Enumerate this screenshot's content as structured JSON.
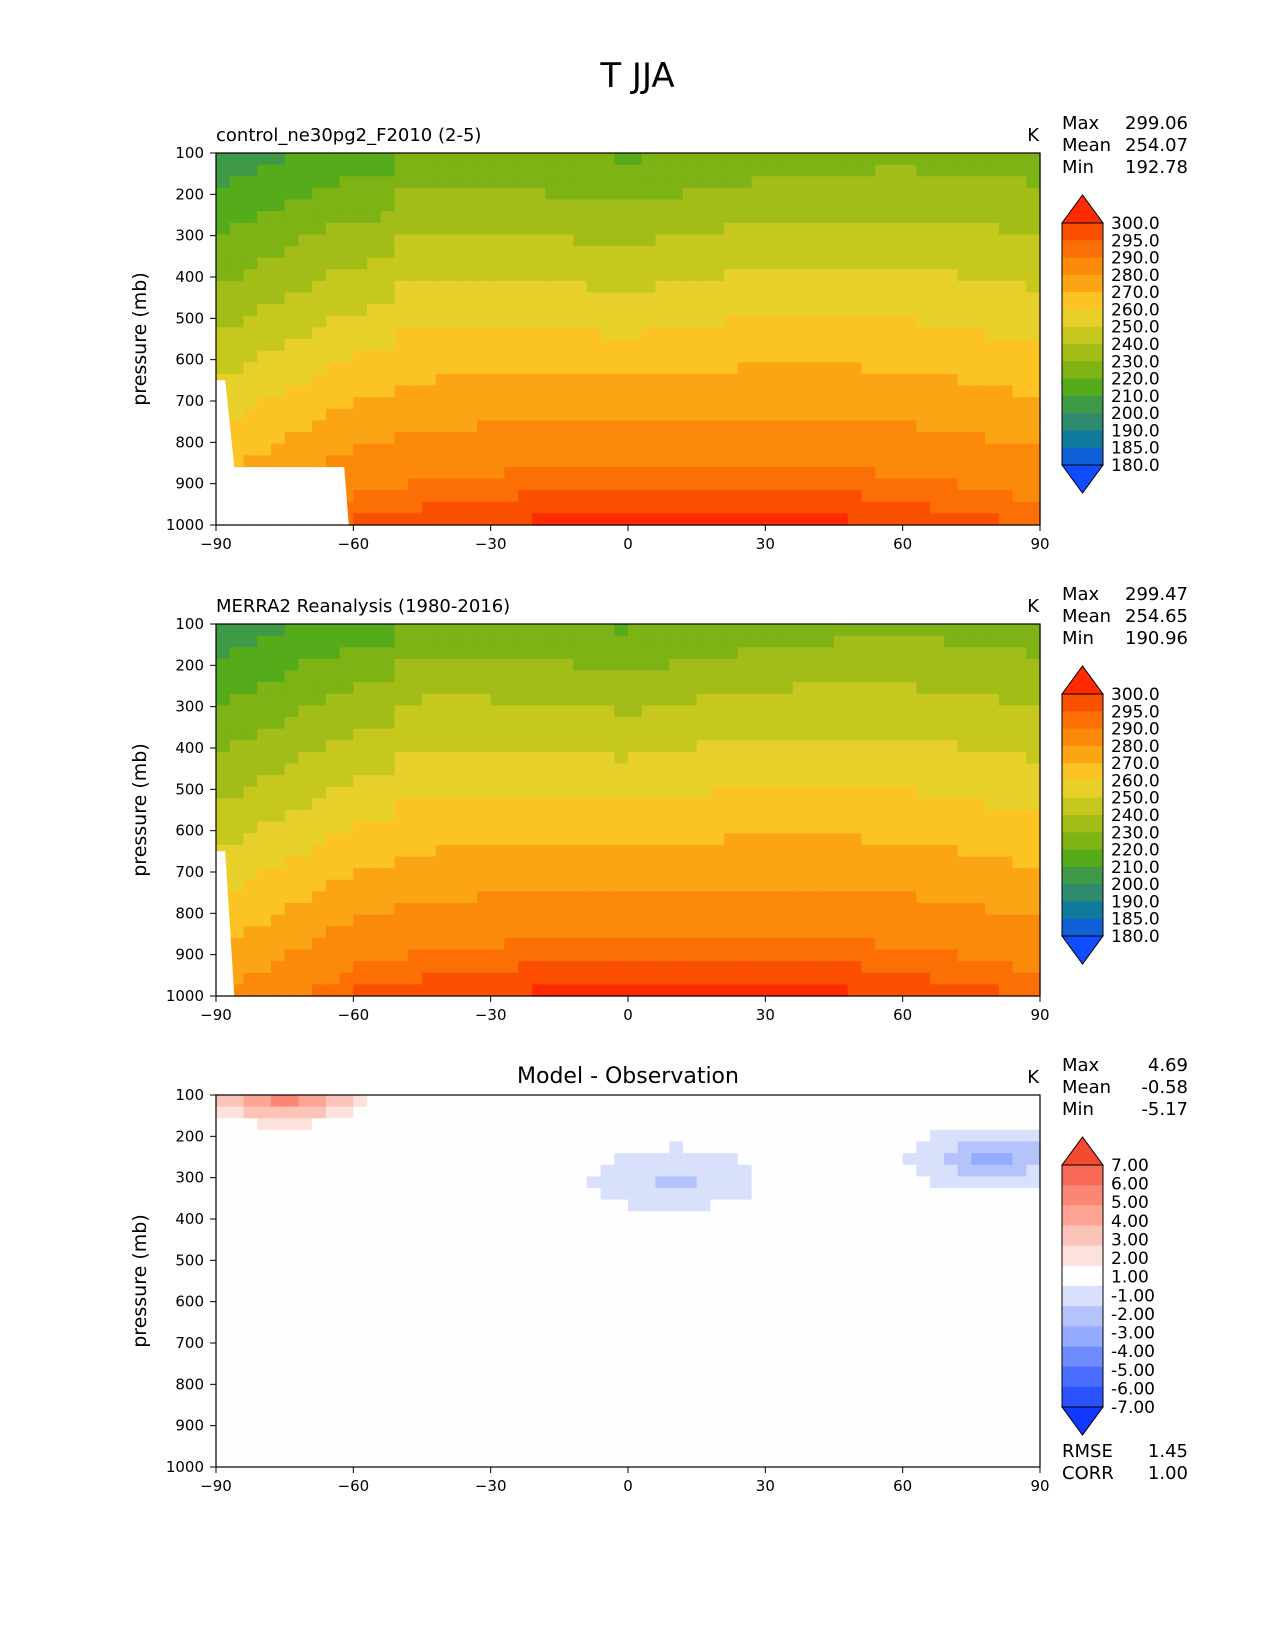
{
  "title": "T JJA",
  "colors": {
    "abs": [
      "#0f4cff",
      "#1060d8",
      "#0f7a99",
      "#2f8a6e",
      "#3f9a48",
      "#55ab1a",
      "#7db315",
      "#a2bc18",
      "#c6c81e",
      "#e8d02a",
      "#fbc422",
      "#fca514",
      "#fc8a0a",
      "#fb6f04",
      "#fb4f00",
      "#ff2a00"
    ],
    "diff": [
      "#1038ff",
      "#2a52ff",
      "#4a6dff",
      "#6e8cff",
      "#95abff",
      "#b4c3fc",
      "#d8e0fb",
      "#fefefe",
      "#fde2dc",
      "#fcc3b8",
      "#fca595",
      "#fb8673",
      "#f86a56",
      "#f44a30"
    ]
  },
  "chart_data": [
    {
      "type": "contour",
      "name": "model",
      "title_left": "control_ne30pg2_F2010 (2-5)",
      "units": "K",
      "ylabel": "pressure (mb)",
      "xticks": [
        "−90",
        "−60",
        "−30",
        "0",
        "30",
        "60",
        "90"
      ],
      "yticks": [
        "100",
        "200",
        "300",
        "400",
        "500",
        "600",
        "700",
        "800",
        "900",
        "1000"
      ],
      "xlim": [
        -90,
        90
      ],
      "ylim": [
        1000,
        100
      ],
      "stats": [
        {
          "label": "Max",
          "value": "299.06"
        },
        {
          "label": "Mean",
          "value": "254.07"
        },
        {
          "label": "Min",
          "value": "192.78"
        }
      ],
      "colorbar_levels": [
        "300.0",
        "295.0",
        "290.0",
        "280.0",
        "270.0",
        "260.0",
        "250.0",
        "240.0",
        "230.0",
        "220.0",
        "210.0",
        "200.0",
        "190.0",
        "185.0",
        "180.0"
      ]
    },
    {
      "type": "contour",
      "name": "obs",
      "title_left": "MERRA2 Reanalysis (1980-2016)",
      "units": "K",
      "ylabel": "pressure (mb)",
      "xticks": [
        "−90",
        "−60",
        "−30",
        "0",
        "30",
        "60",
        "90"
      ],
      "yticks": [
        "100",
        "200",
        "300",
        "400",
        "500",
        "600",
        "700",
        "800",
        "900",
        "1000"
      ],
      "xlim": [
        -90,
        90
      ],
      "ylim": [
        1000,
        100
      ],
      "stats": [
        {
          "label": "Max",
          "value": "299.47"
        },
        {
          "label": "Mean",
          "value": "254.65"
        },
        {
          "label": "Min",
          "value": "190.96"
        }
      ],
      "colorbar_levels": [
        "300.0",
        "295.0",
        "290.0",
        "280.0",
        "270.0",
        "260.0",
        "250.0",
        "240.0",
        "230.0",
        "220.0",
        "210.0",
        "200.0",
        "190.0",
        "185.0",
        "180.0"
      ]
    },
    {
      "type": "contour",
      "name": "diff",
      "title_center": "Model - Observation",
      "units": "K",
      "ylabel": "pressure (mb)",
      "xticks": [
        "−90",
        "−60",
        "−30",
        "0",
        "30",
        "60",
        "90"
      ],
      "yticks": [
        "100",
        "200",
        "300",
        "400",
        "500",
        "600",
        "700",
        "800",
        "900",
        "1000"
      ],
      "xlim": [
        -90,
        90
      ],
      "ylim": [
        1000,
        100
      ],
      "stats": [
        {
          "label": "Max",
          "value": "4.69"
        },
        {
          "label": "Mean",
          "value": "-0.58"
        },
        {
          "label": "Min",
          "value": "-5.17"
        }
      ],
      "colorbar_levels": [
        "7.00",
        "6.00",
        "5.00",
        "4.00",
        "3.00",
        "2.00",
        "1.00",
        "-1.00",
        "-2.00",
        "-3.00",
        "-4.00",
        "-5.00",
        "-6.00",
        "-7.00"
      ],
      "extra_stats": [
        {
          "label": "RMSE",
          "value": "1.45"
        },
        {
          "label": "CORR",
          "value": "1.00"
        }
      ]
    }
  ]
}
